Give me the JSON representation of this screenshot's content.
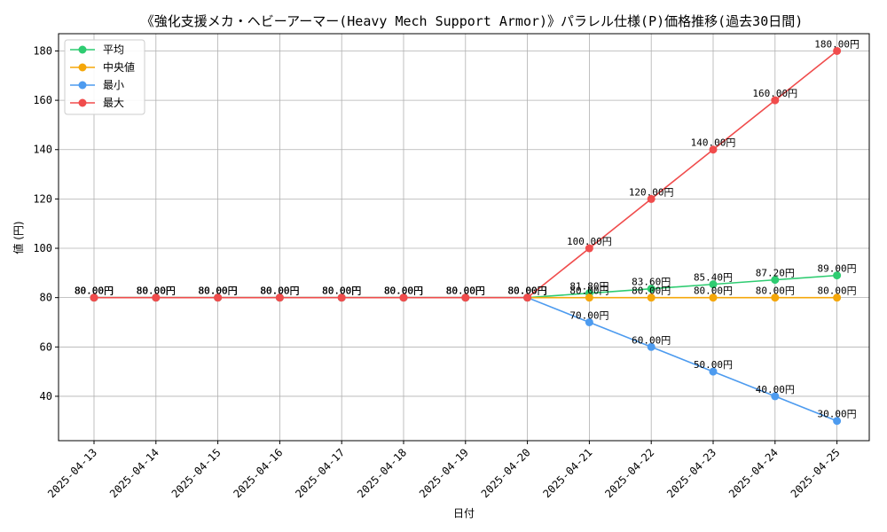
{
  "chart_data": {
    "type": "line",
    "title": "《強化支援メカ・ヘビーアーマー(Heavy Mech Support Armor)》パラレル仕様(P)価格推移(過去30日間)",
    "xlabel": "日付",
    "ylabel": "値 (円)",
    "ylim": [
      22,
      187
    ],
    "yticks": [
      40,
      60,
      80,
      100,
      120,
      140,
      160,
      180
    ],
    "grid": true,
    "legend_position": "top-left",
    "label_suffix": "円",
    "x": [
      "2025-04-13",
      "2025-04-14",
      "2025-04-15",
      "2025-04-16",
      "2025-04-17",
      "2025-04-18",
      "2025-04-19",
      "2025-04-20",
      "2025-04-21",
      "2025-04-22",
      "2025-04-23",
      "2025-04-24",
      "2025-04-25"
    ],
    "series": [
      {
        "name": "平均",
        "color": "#2ecc71",
        "values": [
          80,
          80,
          80,
          80,
          80,
          80,
          80,
          80,
          81.8,
          83.6,
          85.4,
          87.2,
          89.0
        ]
      },
      {
        "name": "中央値",
        "color": "#f5a70a",
        "values": [
          80,
          80,
          80,
          80,
          80,
          80,
          80,
          80,
          80,
          80,
          80,
          80,
          80
        ]
      },
      {
        "name": "最小",
        "color": "#4d9bef",
        "values": [
          80,
          80,
          80,
          80,
          80,
          80,
          80,
          80,
          70,
          60,
          50,
          40,
          30
        ]
      },
      {
        "name": "最大",
        "color": "#f04c4c",
        "values": [
          80,
          80,
          80,
          80,
          80,
          80,
          80,
          80,
          100,
          120,
          140,
          160,
          180
        ]
      }
    ]
  }
}
